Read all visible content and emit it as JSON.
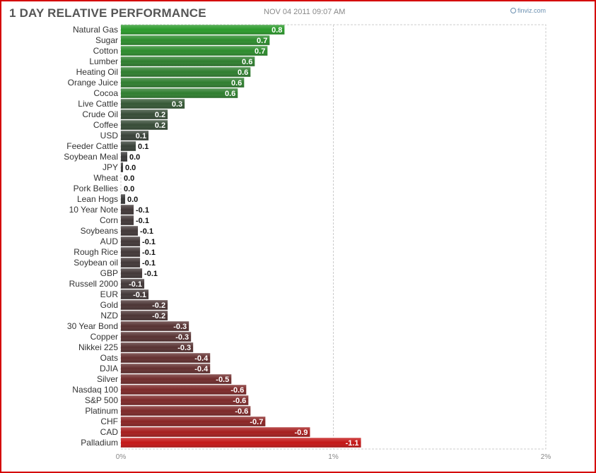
{
  "header": {
    "title": "1 DAY RELATIVE PERFORMANCE",
    "timestamp": "NOV 04 2011 09:07 AM",
    "brand": "finviz.com"
  },
  "colors": {
    "positive": "#2b9a2b",
    "negative": "#c41616",
    "neutral": "#3a3a3a",
    "grid": "#cccccc"
  },
  "chart_data": {
    "type": "bar",
    "orientation": "horizontal",
    "title": "1 DAY RELATIVE PERFORMANCE",
    "xlim": [
      0,
      2
    ],
    "x_tick_labels": [
      "0%",
      "1%",
      "2%"
    ],
    "grid": true,
    "categories": [
      "Natural Gas",
      "Sugar",
      "Cotton",
      "Lumber",
      "Heating Oil",
      "Orange Juice",
      "Cocoa",
      "Live Cattle",
      "Crude Oil",
      "Coffee",
      "USD",
      "Feeder Cattle",
      "Soybean Meal",
      "JPY",
      "Wheat",
      "Pork Bellies",
      "Lean Hogs",
      "10 Year Note",
      "Corn",
      "Soybeans",
      "AUD",
      "Rough Rice",
      "Soybean oil",
      "GBP",
      "Russell 2000",
      "EUR",
      "Gold",
      "NZD",
      "30 Year Bond",
      "Copper",
      "Nikkei 225",
      "Oats",
      "DJIA",
      "Silver",
      "Nasdaq 100",
      "S&P 500",
      "Platinum",
      "CHF",
      "CAD",
      "Palladium"
    ],
    "values": [
      0.77,
      0.7,
      0.69,
      0.63,
      0.61,
      0.58,
      0.55,
      0.3,
      0.22,
      0.22,
      0.13,
      0.07,
      0.03,
      0.01,
      0.0,
      0.0,
      0.02,
      0.06,
      0.06,
      0.08,
      0.09,
      0.09,
      0.09,
      0.1,
      0.11,
      0.13,
      0.22,
      0.22,
      0.32,
      0.33,
      0.34,
      0.42,
      0.42,
      0.52,
      0.59,
      0.6,
      0.61,
      0.68,
      0.89,
      1.13
    ],
    "labels": [
      "0.8",
      "0.7",
      "0.7",
      "0.6",
      "0.6",
      "0.6",
      "0.6",
      "0.3",
      "0.2",
      "0.2",
      "0.1",
      "0.1",
      "0.0",
      "0.0",
      "0.0",
      "0.0",
      "0.0",
      "-0.1",
      "-0.1",
      "-0.1",
      "-0.1",
      "-0.1",
      "-0.1",
      "-0.1",
      "-0.1",
      "-0.1",
      "-0.2",
      "-0.2",
      "-0.3",
      "-0.3",
      "-0.3",
      "-0.4",
      "-0.4",
      "-0.5",
      "-0.6",
      "-0.6",
      "-0.6",
      "-0.7",
      "-0.9",
      "-1.1"
    ],
    "signed_values": [
      0.8,
      0.7,
      0.7,
      0.6,
      0.6,
      0.6,
      0.6,
      0.3,
      0.2,
      0.2,
      0.1,
      0.1,
      0.0,
      0.0,
      0.0,
      0.0,
      0.0,
      -0.1,
      -0.1,
      -0.1,
      -0.1,
      -0.1,
      -0.1,
      -0.1,
      -0.1,
      -0.1,
      -0.2,
      -0.2,
      -0.3,
      -0.3,
      -0.3,
      -0.4,
      -0.4,
      -0.5,
      -0.6,
      -0.6,
      -0.6,
      -0.7,
      -0.9,
      -1.1
    ]
  }
}
